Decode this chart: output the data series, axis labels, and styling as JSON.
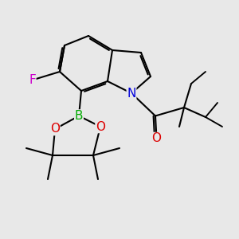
{
  "bg_color": "#e8e8e8",
  "atom_colors": {
    "F": "#cc00cc",
    "B": "#00aa00",
    "N": "#0000dd",
    "O": "#dd0000",
    "C": "#000000"
  },
  "bond_color": "#000000",
  "bond_lw": 1.5,
  "font_size_atom": 11,
  "font_size_me": 9,
  "xlim": [
    0,
    10
  ],
  "ylim": [
    0,
    10
  ]
}
